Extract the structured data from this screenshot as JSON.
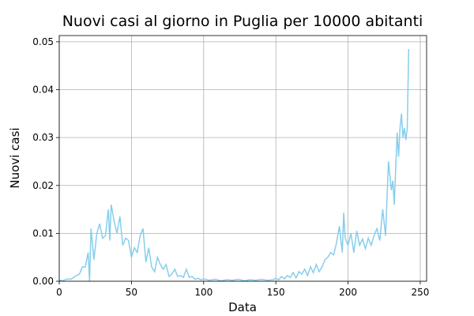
{
  "chart_data": {
    "type": "line",
    "title": "Nuovi casi al giorno in Puglia per 10000 abitanti",
    "x_label": "Data",
    "y_label": "Nuovi casi",
    "x": [
      0,
      2,
      4,
      6,
      8,
      10,
      12,
      14,
      16,
      18,
      20,
      21,
      22,
      24,
      26,
      28,
      30,
      32,
      34,
      35,
      36,
      38,
      40,
      42,
      44,
      46,
      48,
      50,
      52,
      54,
      56,
      58,
      60,
      62,
      64,
      66,
      68,
      70,
      72,
      74,
      76,
      78,
      80,
      82,
      84,
      86,
      88,
      90,
      92,
      94,
      96,
      98,
      100,
      104,
      108,
      112,
      116,
      120,
      124,
      128,
      132,
      136,
      140,
      144,
      148,
      150,
      152,
      154,
      156,
      158,
      160,
      162,
      164,
      166,
      168,
      170,
      172,
      174,
      176,
      178,
      180,
      182,
      184,
      186,
      188,
      190,
      192,
      194,
      196,
      197,
      198,
      200,
      202,
      204,
      206,
      208,
      210,
      212,
      214,
      216,
      218,
      220,
      222,
      224,
      226,
      228,
      230,
      231,
      232,
      234,
      235,
      236,
      237,
      238,
      239,
      240,
      241,
      242
    ],
    "series": [
      {
        "name": "Nuovi casi",
        "color": "#87ceeb",
        "values": [
          0.0002,
          0.0001,
          0.0003,
          0.0005,
          0.0004,
          0.0008,
          0.0012,
          0.0015,
          0.003,
          0.003,
          0.006,
          0,
          0.011,
          0.0045,
          0.01,
          0.012,
          0.009,
          0.0095,
          0.015,
          0.0085,
          0.016,
          0.0125,
          0.01,
          0.0135,
          0.0075,
          0.009,
          0.0085,
          0.005,
          0.007,
          0.006,
          0.0095,
          0.011,
          0.004,
          0.007,
          0.003,
          0.002,
          0.005,
          0.0035,
          0.0025,
          0.0035,
          0.001,
          0.0015,
          0.0025,
          0.001,
          0.0012,
          0.0008,
          0.0025,
          0.0008,
          0.001,
          0.0004,
          0.0006,
          0.0003,
          0.0005,
          0.0002,
          0.0004,
          0.0001,
          0.0003,
          0.0002,
          0.0004,
          0.0001,
          0.0003,
          0.0002,
          0.0004,
          0.0002,
          0.0003,
          0.0006,
          0.0003,
          0.001,
          0.0005,
          0.0012,
          0.0008,
          0.0018,
          0.0007,
          0.002,
          0.0015,
          0.0025,
          0.0012,
          0.003,
          0.0018,
          0.0035,
          0.002,
          0.003,
          0.0045,
          0.005,
          0.006,
          0.0055,
          0.008,
          0.0115,
          0.006,
          0.0143,
          0.009,
          0.0075,
          0.01,
          0.006,
          0.0105,
          0.0075,
          0.0088,
          0.0068,
          0.009,
          0.0075,
          0.0095,
          0.011,
          0.0085,
          0.015,
          0.0095,
          0.025,
          0.019,
          0.021,
          0.016,
          0.031,
          0.026,
          0.032,
          0.035,
          0.03,
          0.032,
          0.0295,
          0.032,
          0.0485
        ]
      }
    ],
    "xlim": [
      0,
      254.4
    ],
    "ylim": [
      0,
      0.0513
    ],
    "xticks": [
      0,
      50,
      100,
      150,
      200,
      250
    ],
    "yticks": [
      {
        "value": 0,
        "label": "0.00"
      },
      0.01,
      0.02,
      0.03,
      0.04,
      0.05
    ],
    "grid": true
  }
}
